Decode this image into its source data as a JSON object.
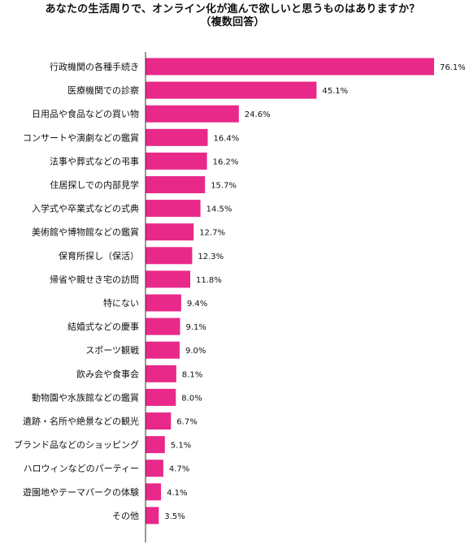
{
  "chart_data": {
    "type": "bar",
    "orientation": "horizontal",
    "title": "あなたの生活周りで、オンライン化が進んで欲しいと思うものはありますか？",
    "subtitle": "（複数回答）",
    "categories": [
      "行政機関の各種手続き",
      "医療機関での診察",
      "日用品や食品などの買い物",
      "コンサートや演劇などの鑑賞",
      "法事や葬式などの弔事",
      "住居探しでの内部見学",
      "入学式や卒業式などの式典",
      "美術館や博物館などの鑑賞",
      "保育所探し（保活）",
      "帰省や親せき宅の訪問",
      "特にない",
      "結婚式などの慶事",
      "スポーツ観戦",
      "飲み会や食事会",
      "動物園や水族館などの鑑賞",
      "遺跡・名所や絶景などの観光",
      "ブランド品などのショッピング",
      "ハロウィンなどのパーティー",
      "遊園地やテーマパークの体験",
      "その他"
    ],
    "values": [
      76.1,
      45.1,
      24.6,
      16.4,
      16.2,
      15.7,
      14.5,
      12.7,
      12.3,
      11.8,
      9.4,
      9.1,
      9.0,
      8.1,
      8.0,
      6.7,
      5.1,
      4.7,
      4.1,
      3.5
    ],
    "value_labels": [
      "76.1%",
      "45.1%",
      "24.6%",
      "16.4%",
      "16.2%",
      "15.7%",
      "14.5%",
      "12.7%",
      "12.3%",
      "11.8%",
      "9.4%",
      "9.1%",
      "9.0%",
      "8.1%",
      "8.0%",
      "6.7%",
      "5.1%",
      "4.7%",
      "4.1%",
      "3.5%"
    ],
    "xlabel": "",
    "ylabel": "",
    "xlim": [
      0,
      100
    ],
    "grid": false,
    "legend": "none",
    "bar_color": "#e8298a",
    "axis_color": "#333333"
  }
}
